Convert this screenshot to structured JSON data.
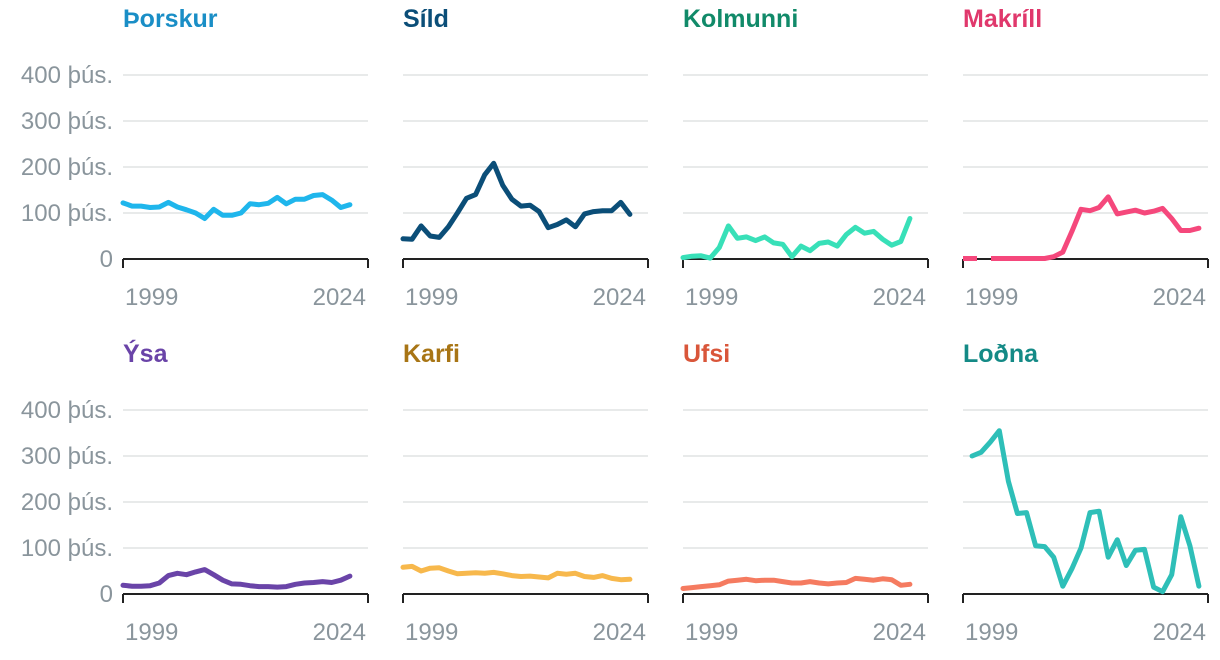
{
  "chart_data": {
    "type": "line",
    "ylim": [
      0,
      400
    ],
    "y_ticks": [
      0,
      100,
      200,
      300,
      400
    ],
    "y_tick_labels": [
      "0",
      "100 þús.",
      "200 þús.",
      "300 þús.",
      "400 þús."
    ],
    "xlim": [
      1998,
      2025
    ],
    "x_tick_labels": [
      "1999",
      "2024"
    ],
    "grid": true,
    "legend": "none",
    "x": [
      1998,
      1999,
      2000,
      2001,
      2002,
      2003,
      2004,
      2005,
      2006,
      2007,
      2008,
      2009,
      2010,
      2011,
      2012,
      2013,
      2014,
      2015,
      2016,
      2017,
      2018,
      2019,
      2020,
      2021,
      2022,
      2023,
      2024,
      2025
    ],
    "panels": [
      {
        "title": "Þorskur",
        "color": "#1fb6ec",
        "title_color": "#1a8ec6",
        "values": [
          122,
          115,
          115,
          112,
          113,
          123,
          113,
          107,
          100,
          88,
          108,
          95,
          95,
          100,
          120,
          118,
          121,
          134,
          120,
          130,
          130,
          138,
          140,
          128,
          112,
          118,
          null,
          null
        ]
      },
      {
        "title": "Síld",
        "color": "#0b4e78",
        "title_color": "#0b4e78",
        "values": [
          44,
          43,
          72,
          50,
          47,
          70,
          100,
          132,
          140,
          183,
          208,
          160,
          130,
          115,
          117,
          103,
          68,
          75,
          85,
          70,
          98,
          103,
          105,
          105,
          123,
          97,
          null,
          null
        ]
      },
      {
        "title": "Kolmunni",
        "color": "#38e0b8",
        "title_color": "#118a69",
        "values": [
          3,
          6,
          7,
          2,
          25,
          72,
          45,
          48,
          40,
          48,
          35,
          32,
          5,
          28,
          18,
          34,
          37,
          28,
          53,
          69,
          56,
          60,
          43,
          30,
          38,
          88,
          null,
          null
        ]
      },
      {
        "title": "Makríll",
        "color": "#f5487c",
        "title_color": "#e0386c",
        "values": [
          1,
          1,
          null,
          1,
          1,
          null,
          null,
          1,
          1,
          1,
          5,
          15,
          60,
          108,
          105,
          112,
          135,
          98,
          102,
          106,
          100,
          104,
          110,
          88,
          62,
          62,
          67,
          null
        ],
        "dashed_through_index": 4
      },
      {
        "title": "Ýsa",
        "color": "#6a44a8",
        "title_color": "#6a44a8",
        "values": [
          19,
          17,
          17,
          18,
          24,
          40,
          45,
          42,
          48,
          53,
          42,
          30,
          22,
          21,
          18,
          16,
          16,
          15,
          16,
          21,
          24,
          25,
          27,
          25,
          30,
          39,
          null,
          null
        ]
      },
      {
        "title": "Karfi",
        "color": "#f7b84c",
        "title_color": "#a87515",
        "values": [
          58,
          60,
          50,
          56,
          57,
          50,
          44,
          45,
          46,
          45,
          47,
          44,
          40,
          38,
          39,
          37,
          35,
          45,
          43,
          45,
          38,
          36,
          40,
          34,
          31,
          32,
          null,
          null
        ]
      },
      {
        "title": "Ufsi",
        "color": "#f57b60",
        "title_color": "#d9563a",
        "values": [
          12,
          14,
          16,
          18,
          20,
          28,
          30,
          32,
          29,
          30,
          30,
          27,
          24,
          24,
          27,
          24,
          22,
          24,
          25,
          34,
          32,
          30,
          33,
          31,
          19,
          21,
          null,
          null
        ]
      },
      {
        "title": "Loðna",
        "color": "#2ebfb8",
        "title_color": "#148a86",
        "values": [
          null,
          300,
          308,
          330,
          355,
          245,
          175,
          177,
          105,
          103,
          80,
          17,
          55,
          100,
          177,
          180,
          80,
          118,
          62,
          95,
          97,
          15,
          5,
          42,
          168,
          105,
          17,
          null
        ]
      }
    ]
  }
}
